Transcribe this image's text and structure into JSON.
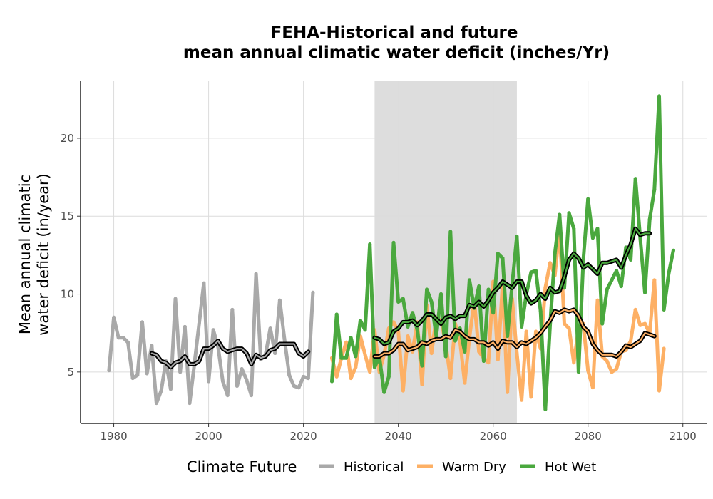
{
  "chart_data": {
    "type": "line",
    "title_line1": "FEHA-Historical and future",
    "title_line2": "mean annual climatic water deficit (inches/Yr)",
    "ylabel_line1": "Mean annual climatic",
    "ylabel_line2": "water deficit (in/year)",
    "xlabel": "",
    "xlim": [
      1973,
      2105
    ],
    "ylim": [
      1.7,
      23.7
    ],
    "x_ticks": [
      "1980",
      "2000",
      "2020",
      "2040",
      "2060",
      "2080",
      "2100"
    ],
    "y_ticks": [
      "5",
      "10",
      "15",
      "20"
    ],
    "grid": true,
    "shaded_band": {
      "x_start": 2035,
      "x_end": 2065,
      "color": "#dddddd"
    },
    "legend": {
      "title": "Climate Future",
      "placement": "bottom",
      "entries": [
        {
          "label": "Historical",
          "color": "#a9a9a9"
        },
        {
          "label": "Warm Dry",
          "color": "#fdb065"
        },
        {
          "label": "Hot Wet",
          "color": "#4aa83e"
        }
      ]
    },
    "series": [
      {
        "name": "Historical",
        "color": "#a9a9a9",
        "start_year": 1979,
        "values": [
          5.1,
          8.5,
          7.2,
          7.2,
          6.9,
          4.6,
          4.8,
          8.2,
          4.9,
          6.7,
          3.0,
          3.8,
          5.7,
          3.9,
          9.7,
          5.0,
          7.9,
          3.0,
          5.5,
          8.1,
          10.7,
          4.4,
          7.7,
          6.6,
          4.4,
          3.5,
          9.0,
          4.1,
          5.2,
          4.5,
          3.5,
          11.3,
          5.8,
          6.1,
          7.8,
          6.2,
          9.6,
          7.1,
          4.8,
          4.1,
          4.0,
          4.7,
          4.6,
          10.1
        ]
      },
      {
        "name": "Historical 10-yr moving average",
        "color": "#a9a9a9",
        "start_year": 1988,
        "values": [
          6.2,
          6.1,
          5.7,
          5.6,
          5.3,
          5.6,
          5.7,
          6.0,
          5.5,
          5.5,
          5.7,
          6.5,
          6.5,
          6.7,
          7.0,
          6.5,
          6.3,
          6.4,
          6.5,
          6.5,
          6.2,
          5.5,
          6.1,
          5.9,
          6.0,
          6.4,
          6.5,
          6.8,
          6.8,
          6.8,
          6.8,
          6.2,
          6.0,
          6.3
        ]
      },
      {
        "name": "Warm Dry",
        "color": "#fdb065",
        "start_year": 2026,
        "values": [
          5.9,
          4.7,
          5.9,
          6.9,
          4.6,
          5.3,
          7.3,
          6.1,
          5.0,
          7.7,
          5.0,
          6.1,
          7.8,
          8.2,
          7.6,
          3.8,
          7.3,
          6.3,
          8.2,
          4.2,
          9.3,
          6.2,
          8.5,
          8.3,
          6.8,
          4.6,
          8.1,
          7.0,
          4.3,
          7.2,
          9.6,
          6.3,
          5.9,
          5.6,
          10.8,
          5.8,
          10.7,
          3.7,
          9.7,
          6.2,
          3.2,
          7.6,
          3.4,
          7.6,
          6.5,
          10.4,
          12.0,
          11.2,
          14.2,
          8.1,
          7.8,
          5.6,
          7.8,
          8.1,
          5.1,
          4.0,
          9.6,
          6.0,
          5.7,
          5.0,
          5.2,
          6.3,
          6.4,
          7.0,
          9.0,
          8.0,
          8.1,
          7.5,
          10.9,
          3.8,
          6.5
        ]
      },
      {
        "name": "Warm Dry 10-yr moving average",
        "color": "#fdb065",
        "start_year": 2035,
        "values": [
          6.0,
          6.0,
          6.2,
          6.2,
          6.4,
          6.8,
          6.8,
          6.4,
          6.5,
          6.6,
          6.9,
          6.8,
          7.0,
          7.1,
          7.1,
          7.3,
          7.2,
          7.7,
          7.6,
          7.3,
          7.1,
          7.1,
          6.9,
          6.9,
          6.7,
          6.9,
          6.5,
          7.0,
          6.9,
          6.9,
          6.6,
          6.9,
          6.8,
          7.0,
          7.2,
          7.5,
          7.9,
          8.3,
          8.9,
          8.8,
          9.0,
          8.9,
          9.0,
          8.6,
          7.9,
          7.6,
          6.8,
          6.4,
          6.1,
          6.1,
          6.1,
          6.0,
          6.3,
          6.7,
          6.6,
          6.8,
          7.0,
          7.5,
          7.4,
          7.3
        ]
      },
      {
        "name": "Hot Wet",
        "color": "#4aa83e",
        "start_year": 2026,
        "values": [
          4.4,
          8.7,
          5.9,
          5.9,
          7.2,
          6.0,
          8.3,
          7.7,
          13.2,
          5.3,
          6.0,
          3.7,
          4.7,
          13.3,
          9.5,
          9.7,
          7.9,
          8.8,
          7.7,
          5.4,
          10.3,
          9.5,
          7.3,
          10.0,
          6.0,
          14.0,
          7.0,
          7.8,
          6.3,
          10.9,
          9.1,
          10.5,
          5.7,
          10.3,
          8.8,
          12.6,
          12.3,
          7.3,
          10.6,
          13.7,
          7.9,
          10.0,
          11.4,
          11.5,
          8.9,
          2.6,
          8.0,
          12.6,
          15.1,
          10.4,
          15.2,
          14.2,
          5.0,
          12.2,
          16.1,
          13.6,
          14.2,
          8.1,
          10.3,
          10.9,
          11.5,
          10.5,
          13.0,
          12.2,
          17.4,
          13.6,
          10.1,
          14.8,
          16.7,
          22.7,
          9.0,
          11.3,
          12.8
        ]
      },
      {
        "name": "Hot Wet 10-yr moving average",
        "color": "#4aa83e",
        "start_year": 2035,
        "values": [
          7.2,
          7.1,
          6.8,
          6.9,
          7.6,
          7.8,
          8.2,
          8.2,
          8.3,
          8.0,
          8.3,
          8.7,
          8.7,
          8.4,
          8.1,
          8.5,
          8.6,
          8.4,
          8.6,
          8.6,
          9.3,
          9.2,
          9.5,
          9.2,
          9.6,
          10.1,
          10.4,
          10.8,
          10.6,
          10.4,
          10.8,
          10.8,
          9.9,
          9.4,
          9.6,
          10.0,
          9.7,
          10.4,
          10.1,
          10.2,
          11.1,
          12.2,
          12.6,
          12.3,
          11.7,
          11.9,
          11.6,
          11.3,
          12.0,
          12.0,
          12.1,
          12.2,
          11.7,
          12.5,
          13.2,
          14.2,
          13.8,
          13.9,
          13.9
        ]
      }
    ]
  }
}
